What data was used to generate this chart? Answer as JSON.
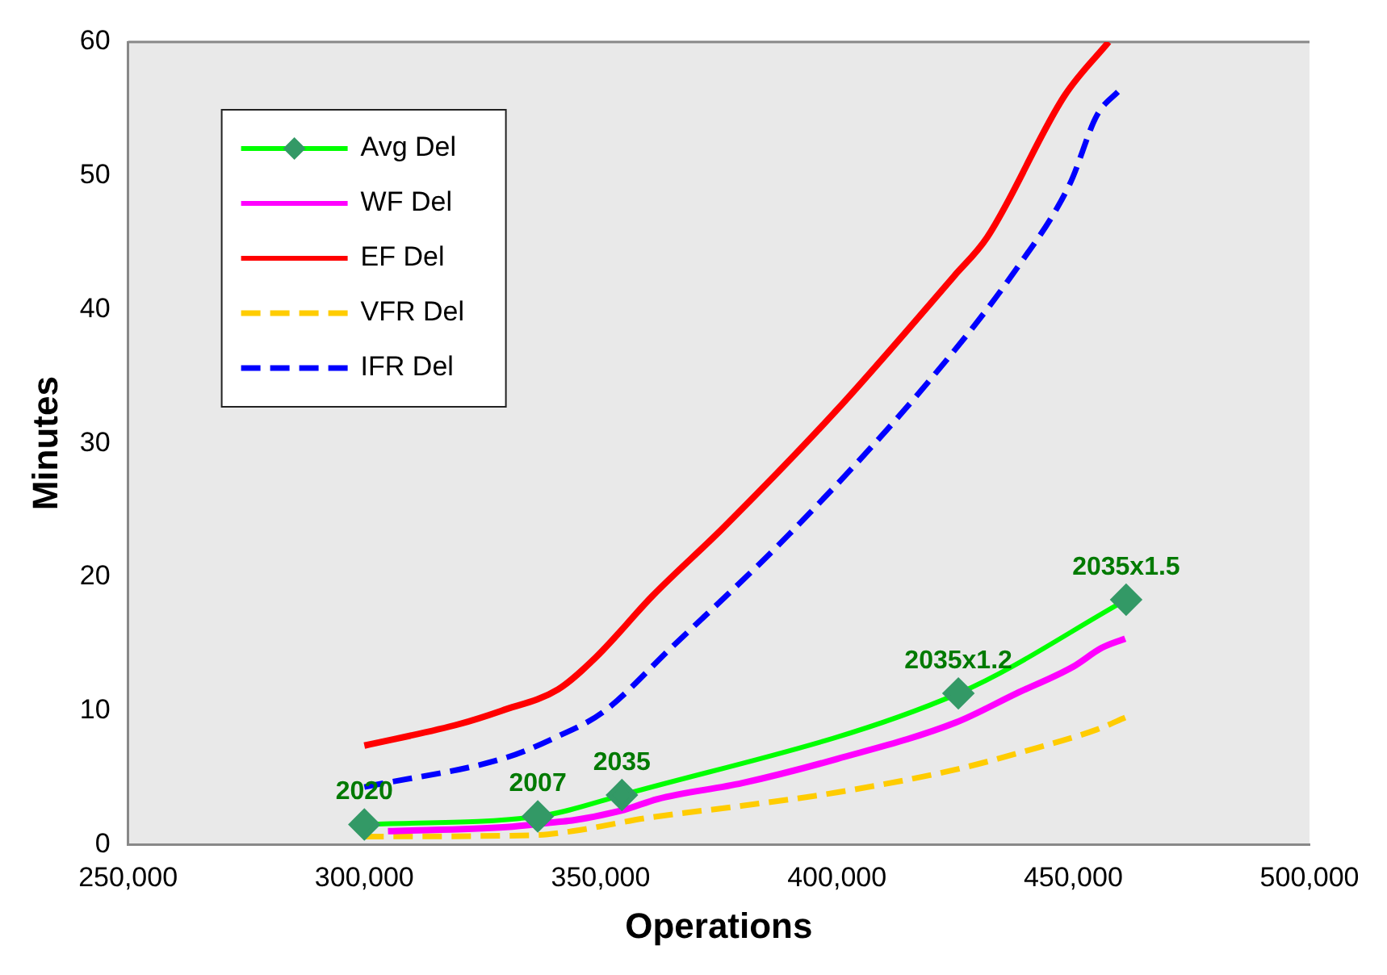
{
  "chart_data": {
    "type": "line",
    "xlabel": "Operations",
    "ylabel": "Minutes",
    "legend": "top left",
    "xlim": [
      250000,
      500000
    ],
    "xticks": [
      {
        "value": 250000,
        "label": "250,000"
      },
      {
        "value": 300000,
        "label": "300,000"
      },
      {
        "value": 350000,
        "label": "350,000"
      },
      {
        "value": 400000,
        "label": "400,000"
      },
      {
        "value": 450000,
        "label": "450,000"
      },
      {
        "value": 500000,
        "label": "500,000"
      }
    ],
    "ylim": [
      0,
      60
    ],
    "yticks": [
      0,
      10,
      20,
      30,
      40,
      50,
      60
    ],
    "series": [
      {
        "name": "Avg Del",
        "color": "#00ff00",
        "marker": "diamond",
        "line_style": "solid",
        "x": [
          300000,
          336700,
          354500,
          425700,
          461200
        ],
        "values": [
          1.5,
          2.1,
          3.7,
          11.3,
          18.3
        ]
      },
      {
        "name": "WF Del",
        "color": "#ff00ff",
        "marker": "none",
        "line_style": "solid",
        "x": [
          305000,
          330000,
          341000,
          344000,
          355000,
          362000,
          380000,
          400000,
          425000,
          438000,
          450000,
          456000,
          461000
        ],
        "values": [
          1.0,
          1.3,
          1.7,
          1.8,
          2.6,
          3.4,
          4.6,
          6.4,
          9.1,
          11.3,
          13.3,
          14.7,
          15.4
        ]
      },
      {
        "name": "EF Del",
        "color": "#ff0000",
        "marker": "none",
        "line_style": "solid",
        "x": [
          300000,
          320000,
          329000,
          341000,
          349000,
          361000,
          376000,
          400000,
          424800,
          431800,
          448200,
          457500
        ],
        "values": [
          7.4,
          9.0,
          10.0,
          11.6,
          14.0,
          18.6,
          23.7,
          32.5,
          42.5,
          45.4,
          56,
          60
        ]
      },
      {
        "name": "VFR Del",
        "color": "#ffcc00",
        "marker": "none",
        "line_style": "dashed",
        "x": [
          300000,
          336000,
          344000,
          360000,
          380000,
          400000,
          425000,
          440000,
          455000,
          461000
        ],
        "values": [
          0.6,
          0.7,
          1.0,
          2.0,
          2.9,
          3.9,
          5.6,
          7.0,
          8.6,
          9.5
        ]
      },
      {
        "name": "IFR Del",
        "color": "#0000ff",
        "marker": "none",
        "line_style": "dashed",
        "x": [
          300000,
          330000,
          341000,
          350500,
          364900,
          389900,
          418900,
          437700,
          449300,
          455000,
          459800
        ],
        "values": [
          4.3,
          6.5,
          8.1,
          9.9,
          14.7,
          23.2,
          34.4,
          42.9,
          49.4,
          54.5,
          56.4
        ]
      }
    ],
    "annotations": [
      {
        "text": "2020",
        "x": 300000,
        "y": 1.5
      },
      {
        "text": "2007",
        "x": 336700,
        "y": 2.1
      },
      {
        "text": "2035",
        "x": 354500,
        "y": 3.7
      },
      {
        "text": "2035x1.2",
        "x": 425700,
        "y": 11.3
      },
      {
        "text": "2035x1.5",
        "x": 461200,
        "y": 18.3
      }
    ]
  }
}
